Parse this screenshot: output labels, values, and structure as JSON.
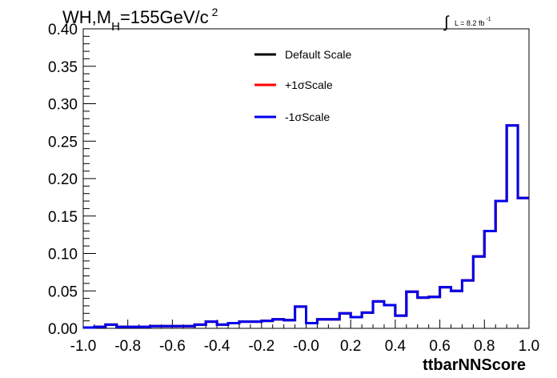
{
  "title": {
    "main": "WH,M",
    "subscript": "H",
    "rest": "=155GeV/c",
    "superscript": "2"
  },
  "lumi": {
    "integral": "∫",
    "text": "L = 8.2 fb",
    "superscript": "-1"
  },
  "chart_data": {
    "type": "line",
    "xlabel": "ttbarNNScore",
    "ylabel": "",
    "xlim": [
      -1.0,
      1.0
    ],
    "ylim": [
      0.0,
      0.4
    ],
    "xticks": [
      "-1.0",
      "-0.8",
      "-0.6",
      "-0.4",
      "-0.2",
      "-0.0",
      "0.2",
      "0.4",
      "0.6",
      "0.8",
      "1.0"
    ],
    "yticks": [
      "0.00",
      "0.05",
      "0.10",
      "0.15",
      "0.20",
      "0.25",
      "0.30",
      "0.35",
      "0.40"
    ],
    "bin_edges": [
      -1.0,
      -0.95,
      -0.9,
      -0.85,
      -0.8,
      -0.75,
      -0.7,
      -0.65,
      -0.6,
      -0.55,
      -0.5,
      -0.45,
      -0.4,
      -0.35,
      -0.3,
      -0.25,
      -0.2,
      -0.15,
      -0.1,
      -0.05,
      0.0,
      0.05,
      0.1,
      0.15,
      0.2,
      0.25,
      0.3,
      0.35,
      0.4,
      0.45,
      0.5,
      0.55,
      0.6,
      0.65,
      0.7,
      0.75,
      0.8,
      0.85,
      0.9,
      0.95,
      1.0
    ],
    "legend_position": "top-center",
    "series": [
      {
        "name": "Default Scale",
        "color": "#000000",
        "values": [
          0.001,
          0.002,
          0.005,
          0.002,
          0.002,
          0.002,
          0.003,
          0.003,
          0.003,
          0.003,
          0.005,
          0.009,
          0.005,
          0.007,
          0.009,
          0.009,
          0.01,
          0.012,
          0.011,
          0.029,
          0.007,
          0.012,
          0.012,
          0.02,
          0.015,
          0.021,
          0.036,
          0.031,
          0.017,
          0.049,
          0.041,
          0.042,
          0.055,
          0.05,
          0.064,
          0.096,
          0.13,
          0.17,
          0.271,
          0.174
        ]
      },
      {
        "name": "+1σScale",
        "color": "#ff0000",
        "values": [
          0.001,
          0.002,
          0.005,
          0.002,
          0.002,
          0.002,
          0.003,
          0.003,
          0.003,
          0.003,
          0.005,
          0.009,
          0.005,
          0.007,
          0.009,
          0.009,
          0.01,
          0.012,
          0.011,
          0.029,
          0.007,
          0.012,
          0.012,
          0.02,
          0.015,
          0.021,
          0.036,
          0.031,
          0.017,
          0.049,
          0.041,
          0.042,
          0.055,
          0.05,
          0.064,
          0.096,
          0.13,
          0.17,
          0.271,
          0.174
        ]
      },
      {
        "name": "-1σScale",
        "color": "#0000ee",
        "values": [
          0.001,
          0.002,
          0.005,
          0.002,
          0.002,
          0.002,
          0.003,
          0.003,
          0.003,
          0.003,
          0.005,
          0.009,
          0.005,
          0.007,
          0.009,
          0.009,
          0.01,
          0.012,
          0.011,
          0.029,
          0.007,
          0.012,
          0.012,
          0.02,
          0.015,
          0.021,
          0.036,
          0.031,
          0.017,
          0.049,
          0.041,
          0.042,
          0.055,
          0.05,
          0.064,
          0.096,
          0.13,
          0.17,
          0.271,
          0.174
        ]
      }
    ]
  }
}
